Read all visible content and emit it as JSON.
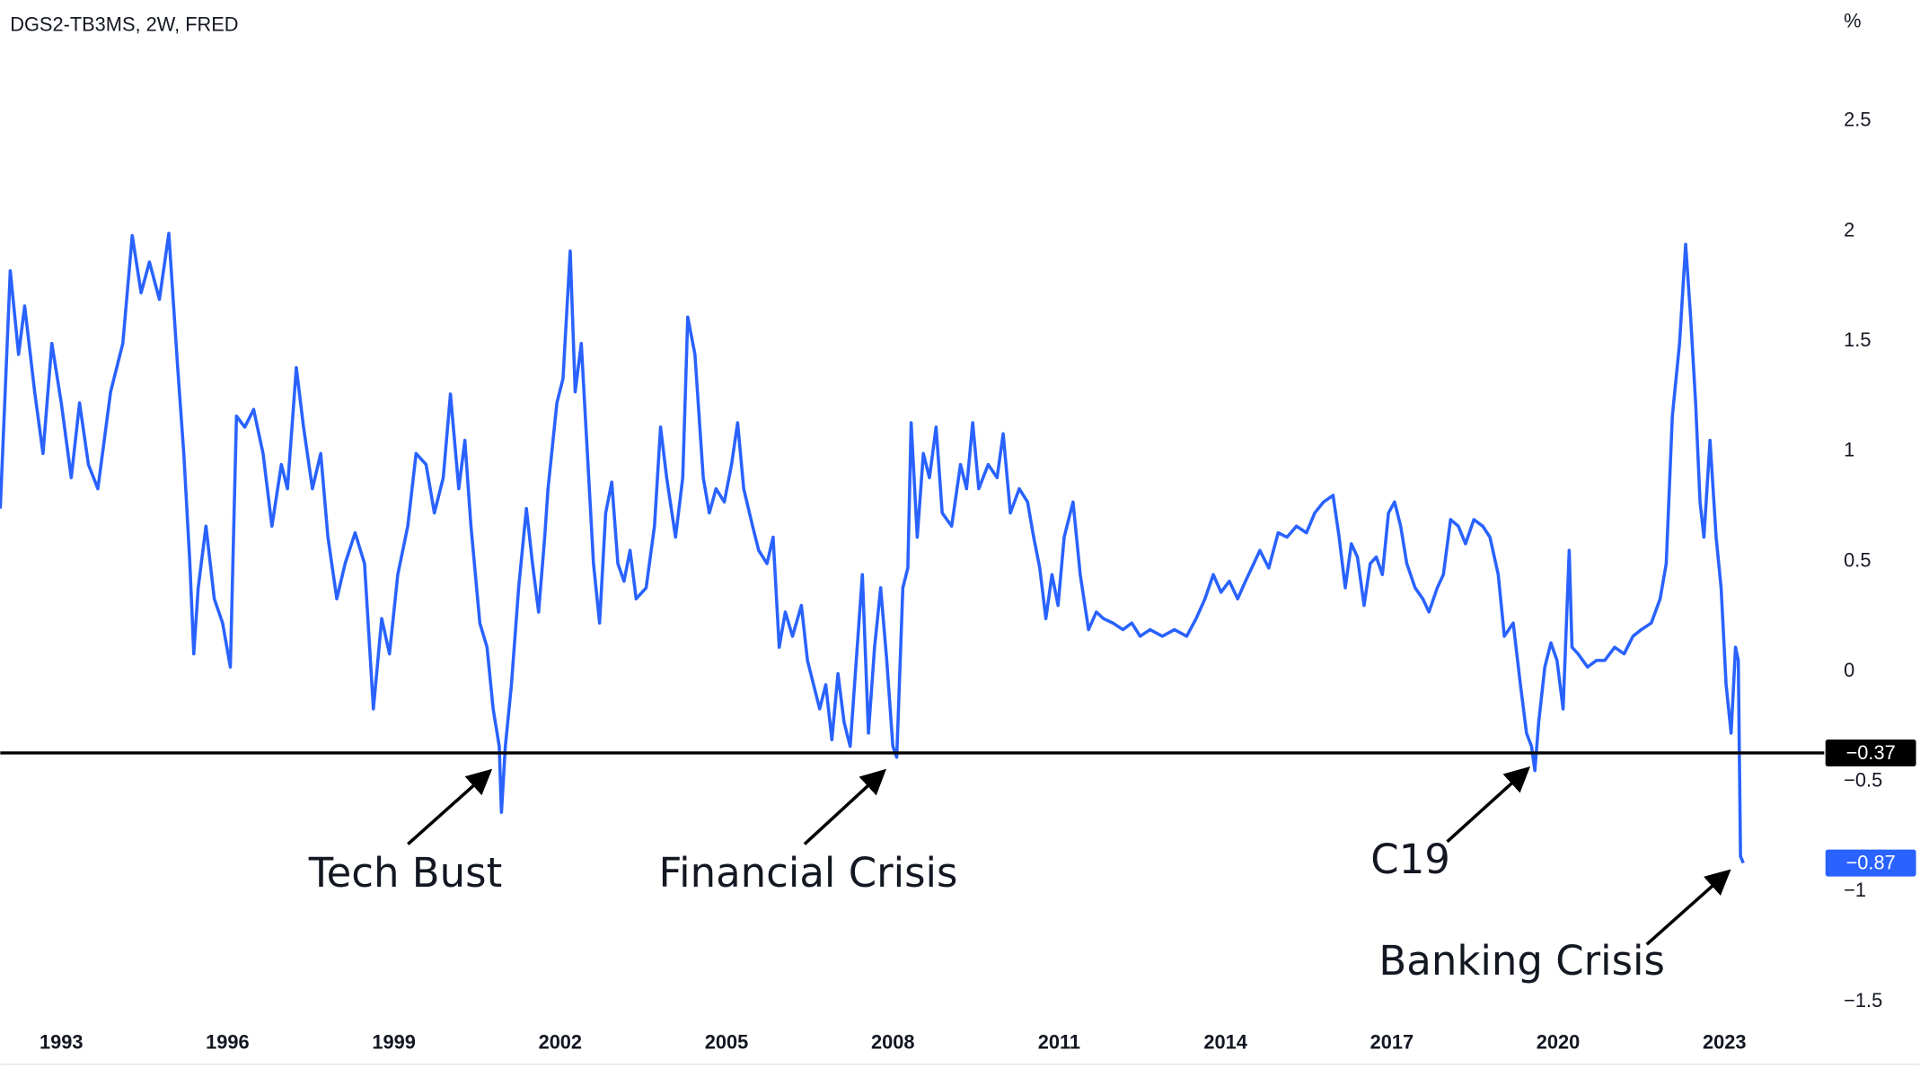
{
  "chart_data": {
    "type": "line",
    "title": "DGS2-TB3MS, 2W, FRED",
    "y_unit": "%",
    "color": "#2962ff",
    "grid": false,
    "xlim": [
      1991.9,
      2024.8
    ],
    "ylim": [
      -1.59,
      3.05
    ],
    "xticks": [
      1993,
      1996,
      1999,
      2002,
      2005,
      2008,
      2011,
      2014,
      2017,
      2020,
      2023
    ],
    "yticks": [
      {
        "value": -1.5,
        "label": "−1.5"
      },
      {
        "value": -1,
        "label": "−1"
      },
      {
        "value": -0.5,
        "label": "−0.5"
      },
      0,
      0.5,
      1,
      1.5,
      2,
      2.5
    ],
    "horizontal_line": {
      "value": -0.37,
      "label": "−0.37",
      "color": "#000000"
    },
    "last_value": {
      "value": -0.87,
      "label": "−0.87"
    },
    "annotations": [
      {
        "text": "Tech Bust"
      },
      {
        "text": "Financial Crisis"
      },
      {
        "text": "C19"
      },
      {
        "text": "Banking Crisis"
      }
    ],
    "x": [
      1991.9,
      1992.08,
      1992.23,
      1992.34,
      1992.52,
      1992.67,
      1992.83,
      1993.0,
      1993.18,
      1993.33,
      1993.49,
      1993.66,
      1993.89,
      1994.11,
      1994.28,
      1994.44,
      1994.59,
      1994.77,
      1994.94,
      1995.1,
      1995.21,
      1995.32,
      1995.39,
      1995.47,
      1995.61,
      1995.76,
      1995.91,
      1996.05,
      1996.16,
      1996.31,
      1996.47,
      1996.64,
      1996.8,
      1996.97,
      1997.08,
      1997.24,
      1997.37,
      1997.53,
      1997.68,
      1997.81,
      1997.97,
      1998.12,
      1998.3,
      1998.47,
      1998.63,
      1998.78,
      1998.92,
      1999.07,
      1999.25,
      1999.4,
      1999.58,
      1999.73,
      1999.89,
      2000.02,
      2000.17,
      2000.28,
      2000.39,
      2000.55,
      2000.68,
      2000.79,
      2000.9,
      2000.94,
      2001.01,
      2001.12,
      2001.25,
      2001.39,
      2001.5,
      2001.61,
      2001.72,
      2001.78,
      2001.94,
      2002.05,
      2002.18,
      2002.27,
      2002.38,
      2002.49,
      2002.6,
      2002.71,
      2002.82,
      2002.93,
      2003.04,
      2003.15,
      2003.26,
      2003.37,
      2003.55,
      2003.7,
      2003.81,
      2003.92,
      2004.08,
      2004.21,
      2004.3,
      2004.43,
      2004.58,
      2004.69,
      2004.81,
      2004.96,
      2005.09,
      2005.2,
      2005.31,
      2005.47,
      2005.58,
      2005.73,
      2005.84,
      2005.95,
      2006.06,
      2006.19,
      2006.35,
      2006.46,
      2006.57,
      2006.68,
      2006.79,
      2006.9,
      2007.01,
      2007.12,
      2007.23,
      2007.34,
      2007.45,
      2007.56,
      2007.67,
      2007.78,
      2007.89,
      2008.0,
      2008.07,
      2008.18,
      2008.27,
      2008.33,
      2008.44,
      2008.55,
      2008.66,
      2008.78,
      2008.89,
      2009.06,
      2009.22,
      2009.33,
      2009.44,
      2009.55,
      2009.72,
      2009.88,
      2009.99,
      2010.12,
      2010.28,
      2010.43,
      2010.54,
      2010.65,
      2010.76,
      2010.87,
      2010.98,
      2011.09,
      2011.25,
      2011.38,
      2011.53,
      2011.67,
      2011.8,
      2011.97,
      2012.15,
      2012.31,
      2012.46,
      2012.64,
      2012.86,
      2013.08,
      2013.3,
      2013.47,
      2013.63,
      2013.78,
      2013.92,
      2014.07,
      2014.22,
      2014.36,
      2014.51,
      2014.62,
      2014.78,
      2014.95,
      2015.11,
      2015.28,
      2015.46,
      2015.61,
      2015.77,
      2015.94,
      2016.05,
      2016.16,
      2016.27,
      2016.38,
      2016.5,
      2016.61,
      2016.72,
      2016.83,
      2016.94,
      2017.05,
      2017.16,
      2017.27,
      2017.42,
      2017.56,
      2017.67,
      2017.82,
      2017.93,
      2018.06,
      2018.2,
      2018.33,
      2018.48,
      2018.64,
      2018.77,
      2018.92,
      2019.03,
      2019.19,
      2019.32,
      2019.43,
      2019.52,
      2019.58,
      2019.65,
      2019.76,
      2019.87,
      2019.98,
      2020.09,
      2020.2,
      2020.25,
      2020.36,
      2020.53,
      2020.69,
      2020.84,
      2021.02,
      2021.19,
      2021.35,
      2021.5,
      2021.68,
      2021.84,
      2021.95,
      2022.06,
      2022.19,
      2022.3,
      2022.39,
      2022.48,
      2022.56,
      2022.63,
      2022.74,
      2022.85,
      2022.94,
      2023.03,
      2023.12,
      2023.2,
      2023.25,
      2023.29,
      2023.34
    ],
    "values": [
      0.74,
      1.82,
      1.44,
      1.66,
      1.27,
      0.99,
      1.49,
      1.22,
      0.88,
      1.22,
      0.94,
      0.83,
      1.27,
      1.49,
      1.98,
      1.72,
      1.86,
      1.69,
      1.99,
      1.38,
      0.99,
      0.49,
      0.08,
      0.38,
      0.66,
      0.33,
      0.22,
      0.02,
      1.16,
      1.11,
      1.19,
      0.99,
      0.66,
      0.94,
      0.83,
      1.38,
      1.11,
      0.83,
      0.99,
      0.61,
      0.33,
      0.49,
      0.63,
      0.49,
      -0.17,
      0.24,
      0.08,
      0.44,
      0.66,
      0.99,
      0.94,
      0.72,
      0.88,
      1.26,
      0.83,
      1.05,
      0.66,
      0.22,
      0.11,
      -0.17,
      -0.34,
      -0.64,
      -0.34,
      -0.06,
      0.38,
      0.74,
      0.49,
      0.27,
      0.61,
      0.83,
      1.22,
      1.33,
      1.91,
      1.27,
      1.49,
      0.99,
      0.49,
      0.22,
      0.72,
      0.86,
      0.49,
      0.41,
      0.55,
      0.33,
      0.38,
      0.66,
      1.11,
      0.88,
      0.61,
      0.88,
      1.61,
      1.44,
      0.88,
      0.72,
      0.83,
      0.77,
      0.94,
      1.13,
      0.83,
      0.66,
      0.55,
      0.49,
      0.61,
      0.11,
      0.27,
      0.16,
      0.3,
      0.05,
      -0.06,
      -0.17,
      -0.06,
      -0.31,
      -0.01,
      -0.23,
      -0.34,
      0.05,
      0.44,
      -0.28,
      0.11,
      0.38,
      0.05,
      -0.34,
      -0.39,
      0.38,
      0.47,
      1.13,
      0.61,
      0.99,
      0.88,
      1.11,
      0.72,
      0.66,
      0.94,
      0.83,
      1.13,
      0.83,
      0.94,
      0.88,
      1.08,
      0.72,
      0.83,
      0.77,
      0.61,
      0.47,
      0.24,
      0.44,
      0.3,
      0.61,
      0.77,
      0.44,
      0.19,
      0.27,
      0.24,
      0.22,
      0.19,
      0.22,
      0.16,
      0.19,
      0.16,
      0.19,
      0.16,
      0.24,
      0.33,
      0.44,
      0.36,
      0.41,
      0.33,
      0.41,
      0.49,
      0.55,
      0.47,
      0.63,
      0.61,
      0.66,
      0.63,
      0.72,
      0.77,
      0.8,
      0.61,
      0.38,
      0.58,
      0.52,
      0.3,
      0.49,
      0.52,
      0.44,
      0.72,
      0.77,
      0.66,
      0.49,
      0.38,
      0.33,
      0.27,
      0.38,
      0.44,
      0.69,
      0.66,
      0.58,
      0.69,
      0.66,
      0.61,
      0.44,
      0.16,
      0.22,
      -0.06,
      -0.28,
      -0.34,
      -0.45,
      -0.23,
      0.02,
      0.13,
      0.05,
      -0.17,
      0.55,
      0.11,
      0.08,
      0.02,
      0.05,
      0.05,
      0.11,
      0.08,
      0.16,
      0.19,
      0.22,
      0.33,
      0.49,
      1.16,
      1.49,
      1.94,
      1.61,
      1.22,
      0.77,
      0.61,
      1.05,
      0.61,
      0.38,
      -0.06,
      -0.28,
      0.11,
      0.05,
      -0.84,
      -0.87
    ]
  }
}
